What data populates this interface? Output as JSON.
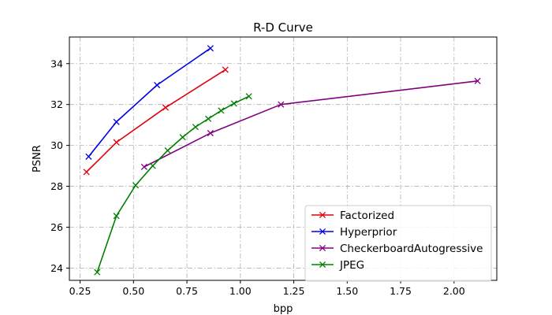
{
  "chart_data": {
    "type": "line",
    "title": "R-D Curve",
    "xlabel": "bpp",
    "ylabel": "PSNR",
    "xlim": [
      0.2,
      2.2
    ],
    "ylim": [
      23.4,
      35.3
    ],
    "xticks": [
      0.25,
      0.5,
      0.75,
      1.0,
      1.25,
      1.5,
      1.75,
      2.0
    ],
    "xtick_labels": [
      "0.25",
      "0.50",
      "0.75",
      "1.00",
      "1.25",
      "1.50",
      "1.75",
      "2.00"
    ],
    "yticks": [
      24,
      26,
      28,
      30,
      32,
      34
    ],
    "ytick_labels": [
      "24",
      "26",
      "28",
      "30",
      "32",
      "34"
    ],
    "grid": true,
    "grid_style": "dash-dot",
    "legend_position": "lower-right",
    "marker": "x",
    "series": [
      {
        "name": "Factorized",
        "color": "#e0000b",
        "x": [
          0.28,
          0.42,
          0.65,
          0.93
        ],
        "y": [
          28.7,
          30.15,
          31.85,
          33.7
        ]
      },
      {
        "name": "Hyperprior",
        "color": "#0000e0",
        "x": [
          0.29,
          0.42,
          0.61,
          0.86
        ],
        "y": [
          29.45,
          31.15,
          32.95,
          34.75
        ]
      },
      {
        "name": "CheckerboardAutogressive",
        "color": "#800080",
        "x": [
          0.55,
          0.86,
          1.19,
          2.11
        ],
        "y": [
          28.95,
          30.6,
          32.0,
          33.15
        ]
      },
      {
        "name": "JPEG",
        "color": "#008000",
        "x": [
          0.33,
          0.42,
          0.51,
          0.59,
          0.66,
          0.73,
          0.79,
          0.85,
          0.91,
          0.97,
          1.04
        ],
        "y": [
          23.8,
          26.55,
          28.05,
          29.0,
          29.75,
          30.4,
          30.9,
          31.3,
          31.7,
          32.05,
          32.4
        ]
      }
    ]
  }
}
